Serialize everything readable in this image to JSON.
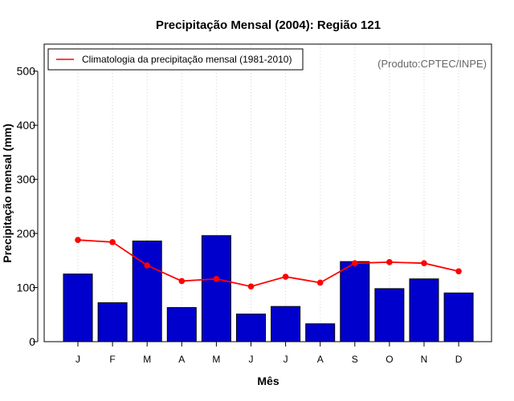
{
  "chart_data": {
    "type": "bar",
    "title": "Precipitação Mensal (2004): Região 121",
    "xlabel": "Mês",
    "ylabel": "Precipitação mensal (mm)",
    "ylim": [
      0,
      550
    ],
    "yticks": [
      0,
      100,
      200,
      300,
      400,
      500
    ],
    "categories": [
      "J",
      "F",
      "M",
      "A",
      "M",
      "J",
      "J",
      "A",
      "S",
      "O",
      "N",
      "D"
    ],
    "series": [
      {
        "name": "Precipitação mensal 2004",
        "type": "bar",
        "color": "#0000cc",
        "values": [
          125,
          72,
          186,
          63,
          196,
          51,
          65,
          33,
          148,
          98,
          116,
          90
        ]
      },
      {
        "name": "Climatologia da precipitação mensal (1981-2010)",
        "type": "line",
        "color": "#ff0000",
        "values": [
          188,
          184,
          141,
          112,
          116,
          102,
          120,
          109,
          145,
          147,
          145,
          130
        ]
      }
    ],
    "legend": {
      "position": "top-left",
      "label": "Climatologia da precipitação mensal (1981-2010)"
    },
    "credit": "(Produto:CPTEC/INPE)",
    "grid": "vertical dotted"
  }
}
